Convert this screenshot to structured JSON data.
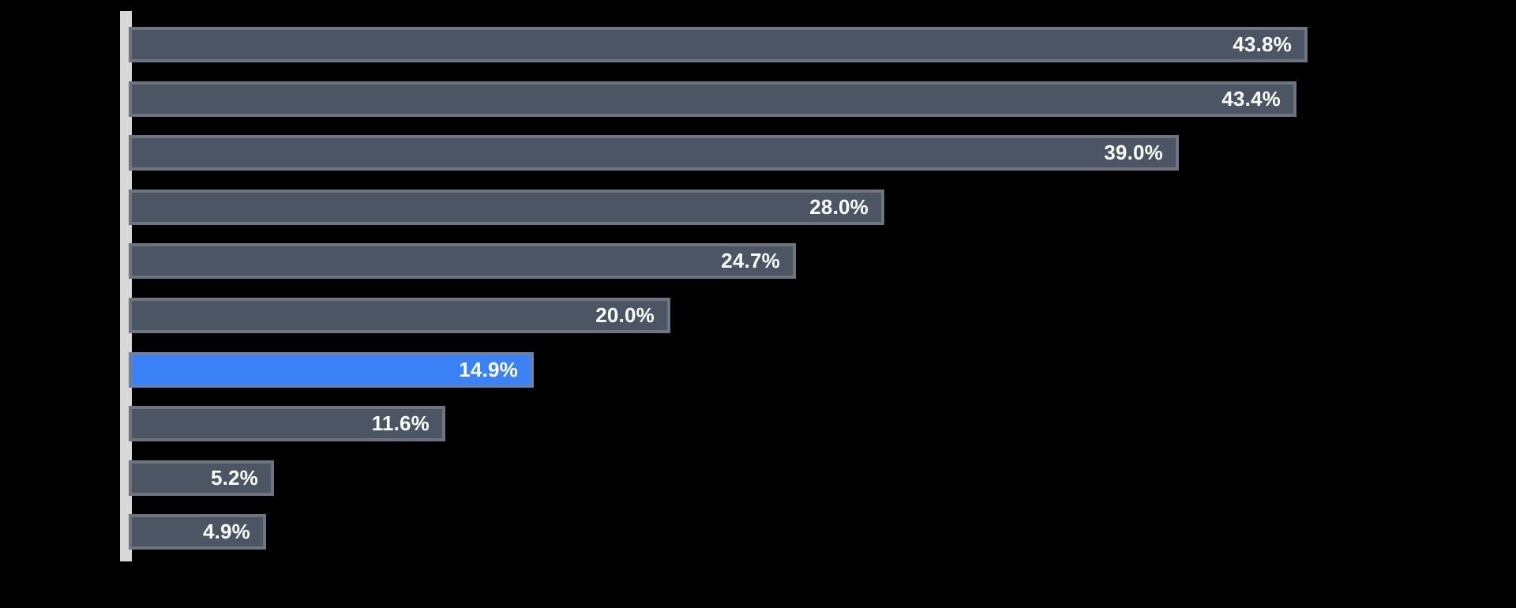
{
  "page": {
    "background_color": "#000000"
  },
  "chart_data": {
    "type": "bar",
    "orientation": "horizontal",
    "title": "",
    "xlabel": "",
    "ylabel": "",
    "xlim": [
      0,
      51.7
    ],
    "grid": false,
    "legend": false,
    "category_labels_visible": false,
    "values": [
      43.8,
      43.4,
      39.0,
      28.0,
      24.7,
      20.0,
      14.9,
      11.6,
      5.2,
      4.9
    ],
    "bar_labels": [
      "43.8%",
      "43.4%",
      "39.0%",
      "28.0%",
      "24.7%",
      "20.0%",
      "14.9%",
      "11.6%",
      "5.2%",
      "4.9%"
    ],
    "highlighted_index": 6,
    "colors": {
      "background": "#000000",
      "bar": "#4b5563",
      "highlighted_bar": "#3b82f6",
      "bar_border": "rgba(125,130,137,0.72)",
      "axis_line": "#d8d8d8",
      "label_text": "#ffffff"
    }
  }
}
